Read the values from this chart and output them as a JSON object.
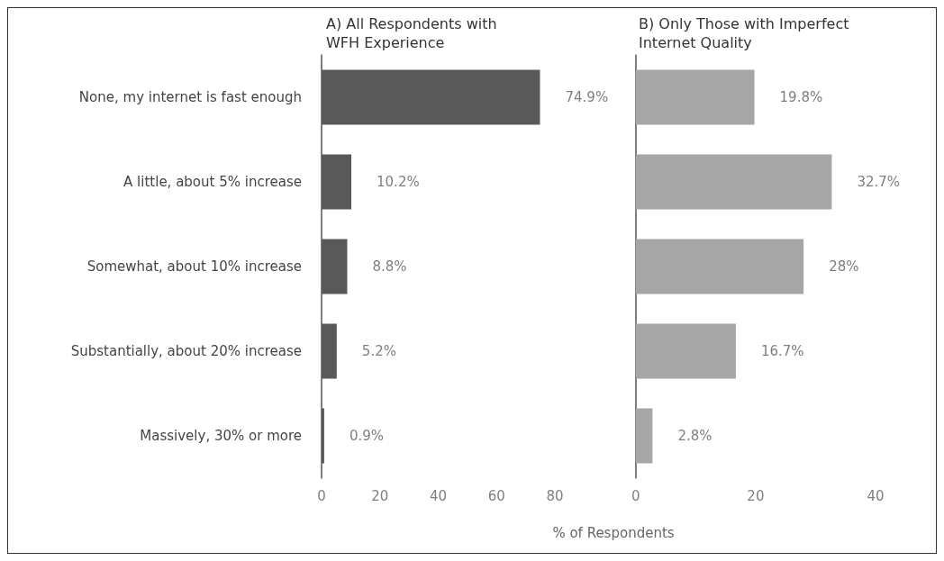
{
  "chart_data": [
    {
      "type": "bar",
      "orientation": "horizontal",
      "title": "A) All Respondents with\nWFH Experience",
      "xlabel": "% of Respondents",
      "categories": [
        "None, my internet is fast enough",
        "A little, about 5% increase",
        "Somewhat, about 10% increase",
        "Substantially, about 20% increase",
        "Massively, 30% or more"
      ],
      "values": [
        74.9,
        10.2,
        8.8,
        5.2,
        0.9
      ],
      "value_labels": [
        "74.9%",
        "10.2%",
        "8.8%",
        "5.2%",
        "0.9%"
      ],
      "color": "#595959",
      "xlim": [
        0,
        80
      ],
      "xticks": [
        0,
        20,
        40,
        60,
        80
      ],
      "grid": false
    },
    {
      "type": "bar",
      "orientation": "horizontal",
      "title": "B) Only Those with Imperfect\nInternet Quality",
      "values": [
        19.8,
        32.7,
        28,
        16.7,
        2.8
      ],
      "value_labels": [
        "19.8%",
        "32.7%",
        "28%",
        "16.7%",
        "2.8%"
      ],
      "color": "#a6a6a6",
      "xlim": [
        0,
        40
      ],
      "xticks": [
        0,
        20,
        40
      ],
      "tick_labels": "x",
      "grid": false
    }
  ]
}
